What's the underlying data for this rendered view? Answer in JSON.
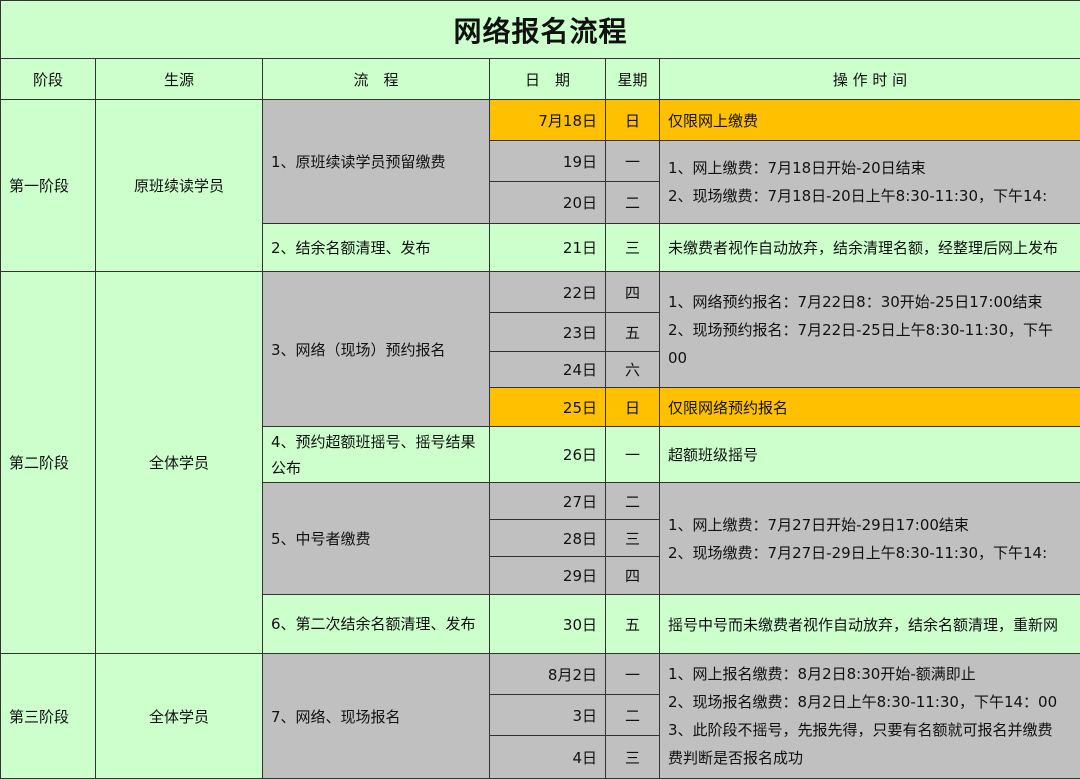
{
  "title": "网络报名流程",
  "headers": [
    "阶段",
    "生源",
    "流　程",
    "日　期",
    "星期",
    "操 作 时 间"
  ],
  "stages": [
    {
      "name": "第一阶段",
      "source": "原班续读学员"
    },
    {
      "name": "第二阶段",
      "source": "全体学员"
    },
    {
      "name": "第三阶段",
      "source": "全体学员"
    }
  ],
  "steps": [
    "1、原班续读学员预留缴费",
    "2、结余名额清理、发布",
    "3、网络（现场）预约报名",
    "4、预约超额班摇号、摇号结果公布",
    "5、中号者缴费",
    "6、第二次结余名额清理、发布",
    "7、网络、现场报名"
  ],
  "rows": [
    {
      "date": "7月18日",
      "week": "日"
    },
    {
      "date": "19日",
      "week": "一"
    },
    {
      "date": "20日",
      "week": "二"
    },
    {
      "date": "21日",
      "week": "三"
    },
    {
      "date": "22日",
      "week": "四"
    },
    {
      "date": "23日",
      "week": "五"
    },
    {
      "date": "24日",
      "week": "六"
    },
    {
      "date": "25日",
      "week": "日"
    },
    {
      "date": "26日",
      "week": "一"
    },
    {
      "date": "27日",
      "week": "二"
    },
    {
      "date": "28日",
      "week": "三"
    },
    {
      "date": "29日",
      "week": "四"
    },
    {
      "date": "30日",
      "week": "五"
    },
    {
      "date": "8月2日",
      "week": "一"
    },
    {
      "date": "3日",
      "week": "二"
    },
    {
      "date": "4日",
      "week": "三"
    }
  ],
  "ops": {
    "o1": "仅限网上缴费",
    "o2": [
      "1、网上缴费：7月18日开始-20日结束",
      "2、现场缴费：7月18日-20日上午8:30-11:30，下午14:"
    ],
    "o3": "未缴费者视作自动放弃，结余清理名额，经整理后网上发布",
    "o4": [
      "1、网络预约报名：7月22日8：30开始-25日17:00结束",
      "2、现场预约报名：7月22日-25日上午8:30-11:30，下午",
      "00"
    ],
    "o5": "仅限网络预约报名",
    "o6": "超额班级摇号",
    "o7": [
      "1、网上缴费：7月27日开始-29日17:00结束",
      "2、现场缴费：7月27日-29日上午8:30-11:30，下午14:"
    ],
    "o8": "摇号中号而未缴费者视作自动放弃，结余名额清理，重新网",
    "o9": [
      "1、网上报名缴费：8月2日8:30开始-额满即止",
      "2、现场报名缴费：8月2日上午8:30-11:30，下午14：00",
      "3、此阶段不摇号，先报先得，只要有名额就可报名并缴费",
      "费判断是否报名成功"
    ]
  },
  "colors": {
    "green": "#ccffcc",
    "gray": "#c0c0c0",
    "orange": "#ffc000"
  }
}
